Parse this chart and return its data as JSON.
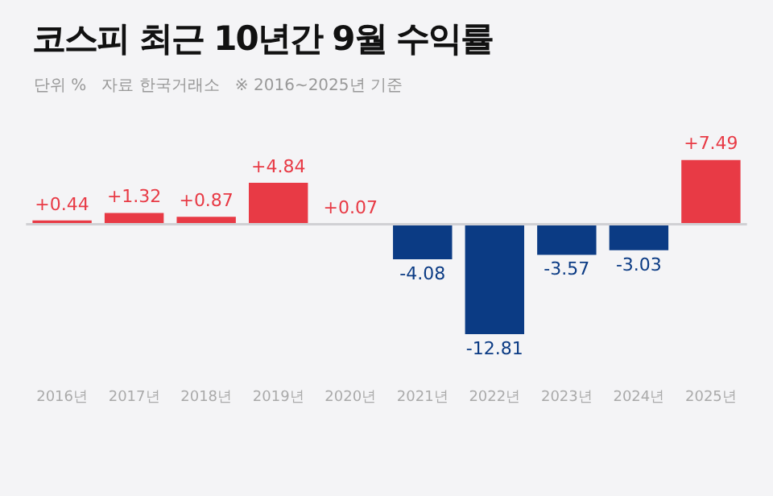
{
  "chart_data": {
    "type": "bar",
    "title": "코스피 최근 10년간 9월 수익률",
    "subtitle": "단위 %   자료 한국거래소   ※ 2016~2025년 기준",
    "categories": [
      "2016년",
      "2017년",
      "2018년",
      "2019년",
      "2020년",
      "2021년",
      "2022년",
      "2023년",
      "2024년",
      "2025년"
    ],
    "values": [
      0.44,
      1.32,
      0.87,
      4.84,
      0.07,
      -4.08,
      -12.81,
      -3.57,
      -3.03,
      7.49
    ],
    "colors": [
      "#e83a45",
      "#e83a45",
      "#e83a45",
      "#e83a45",
      "#e83a45",
      "#0b3b84",
      "#0b3b84",
      "#0b3b84",
      "#0b3b84",
      "#e83a45"
    ],
    "value_labels": [
      "+0.44",
      "+1.32",
      "+0.87",
      "+4.84",
      "+0.07",
      "-4.08",
      "-12.81",
      "-3.57",
      "-3.03",
      "+7.49"
    ],
    "tick_labels": "x",
    "grid": false,
    "legend": false
  }
}
